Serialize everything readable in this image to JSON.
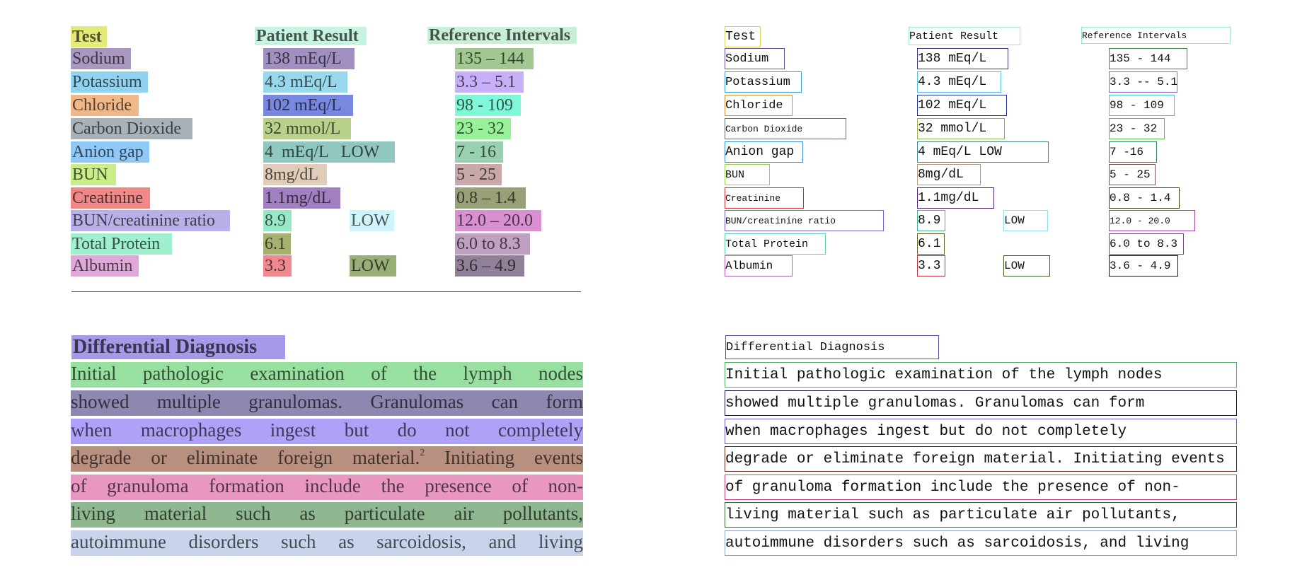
{
  "table": {
    "headers": [
      {
        "text": "Test",
        "ocr": "Test",
        "highlight": "#e4ea78",
        "box": "#d6d65a"
      },
      {
        "text": "Patient Result",
        "ocr": "Patient Result",
        "highlight": "#c6f4e0",
        "box": "#9ee6d6"
      },
      {
        "text": "Reference Intervals",
        "ocr": "Reference Intervals",
        "highlight": "#c8f0d6",
        "box": "#9ee6c6"
      }
    ],
    "rows": [
      {
        "test": {
          "text": "Sodium",
          "ocr": "Sodium",
          "highlight": "#a898c0",
          "box": "#6a4a9a"
        },
        "result": {
          "text": "138 mEq/L",
          "ocr": "138 mEq/L",
          "highlight": "#a090c0",
          "box": "#403070"
        },
        "reference": {
          "text": "135 – 144",
          "ocr": "135 - 144",
          "highlight": "#a0c890",
          "box": "#408040"
        }
      },
      {
        "test": {
          "text": "Potassium",
          "ocr": "Potassium",
          "highlight": "#8fd3f0",
          "box": "#3aa0d0"
        },
        "result": {
          "text": "4.3 mEq/L",
          "ocr": "4.3 mEq/L",
          "highlight": "#98d8ec",
          "box": "#50c0e0"
        },
        "reference": {
          "text": "3.3 – 5.1",
          "ocr": "3.3 -- 5.1",
          "highlight": "#c8b0f8",
          "box": "#9060d0"
        }
      },
      {
        "test": {
          "text": "Chloride",
          "ocr": "Chloride",
          "highlight": "#f0b888",
          "box": "#d09040"
        },
        "result": {
          "text": "102 mEq/L",
          "ocr": "102 mEq/L",
          "highlight": "#7888e0",
          "box": "#203090"
        },
        "reference": {
          "text": "98 - 109",
          "ocr": "98 - 109",
          "highlight": "#80f8d8",
          "box": "#40d0c0"
        }
      },
      {
        "test": {
          "text": "Carbon Dioxide",
          "ocr": "Carbon Dioxide",
          "highlight": "#a8b0b8",
          "box": "#606870"
        },
        "result": {
          "text": "32 mmol/L",
          "ocr": "32 mmol/L",
          "highlight": "#b8d088",
          "box": "#90b040"
        },
        "reference": {
          "text": "23 - 32",
          "ocr": "23 - 32",
          "highlight": "#98f098",
          "box": "#50c050"
        }
      },
      {
        "test": {
          "text": "Anion gap",
          "ocr": "Anion gap",
          "highlight": "#90c8f8",
          "box": "#3890d0"
        },
        "result": {
          "text": "4  mEq/L   LOW",
          "ocr": "4 mEq/L LOW",
          "highlight": "#90c8c0",
          "box": "#408888"
        },
        "reference": {
          "text": "7 - 16",
          "ocr": "7 -16",
          "highlight": "#98d0b0",
          "box": "#308060"
        }
      },
      {
        "test": {
          "text": "BUN",
          "ocr": "BUN",
          "highlight": "#c8ee88",
          "box": "#98d050"
        },
        "result": {
          "text": "8mg/dL",
          "ocr": "8mg/dL",
          "highlight": "#e0ccb8",
          "box": "#b09880"
        },
        "reference": {
          "text": "5 - 25",
          "ocr": "5 - 25",
          "highlight": "#c8a8a8",
          "box": "#805050"
        }
      },
      {
        "test": {
          "text": "Creatinine",
          "ocr": "Creatinine",
          "highlight": "#f08888",
          "box": "#c03030"
        },
        "result": {
          "text": "1.1mg/dL",
          "ocr": "1.1mg/dL",
          "highlight": "#a080c0",
          "box": "#502070"
        },
        "reference": {
          "text": "0.8 – 1.4",
          "ocr": "0.8 - 1.4",
          "highlight": "#98a078",
          "box": "#404010"
        }
      },
      {
        "test": {
          "text": "BUN/creatinine ratio",
          "ocr": "BUN/creatinine ratio",
          "highlight": "#b8b0e8",
          "box": "#7060c0"
        },
        "result": {
          "text": "8.9",
          "ocr": "8.9",
          "highlight": "#98e8c8",
          "box": "#40b098"
        },
        "flag": {
          "text": "LOW",
          "ocr": "LOW",
          "highlight": "#d0f4fc",
          "box": "#90e0f0"
        },
        "reference": {
          "text": "12.0 – 20.0",
          "ocr": "12.0 - 20.0",
          "highlight": "#d890d0",
          "box": "#a040a0"
        }
      },
      {
        "test": {
          "text": "Total Protein",
          "ocr": "Total Protein",
          "highlight": "#a0f0d0",
          "box": "#60d0b0"
        },
        "result": {
          "text": "6.1",
          "ocr": "6.1",
          "highlight": "#a8b070",
          "box": "#606020"
        },
        "reference": {
          "text": "6.0 to 8.3",
          "ocr": "6.0 to 8.3",
          "highlight": "#c0a0c0",
          "box": "#705070"
        }
      },
      {
        "test": {
          "text": "Albumin",
          "ocr": "Albumin",
          "highlight": "#e0a8d8",
          "box": "#b060b0"
        },
        "result": {
          "text": "3.3",
          "ocr": "3.3",
          "highlight": "#f08890",
          "box": "#c03040"
        },
        "flag": {
          "text": "LOW",
          "ocr": "LOW",
          "highlight": "#98b078",
          "box": "#406020"
        },
        "reference": {
          "text": "3.6 – 4.9",
          "ocr": "3.6 - 4.9",
          "highlight": "#908098",
          "box": "#101020"
        }
      }
    ]
  },
  "section": {
    "title": {
      "text": "Differential Diagnosis",
      "ocr": "Differential Diagnosis",
      "highlight": "#a898e8",
      "box": "#6050a0"
    },
    "lines": [
      {
        "text": "Initial pathologic examination of the lymph nodes",
        "ocr": "Initial pathologic examination of the lymph nodes",
        "highlight": "#98e0a0",
        "box": "#50b060"
      },
      {
        "text": "showed multiple granulomas. Granulomas can form",
        "ocr": "showed multiple granulomas. Granulomas can form",
        "highlight": "#8c88b0",
        "box": "#101040"
      },
      {
        "text": "when macrophages ingest but do not completely",
        "ocr": "when macrophages ingest but do not completely",
        "highlight": "#b0a0f8",
        "box": "#7060c0"
      },
      {
        "text": "degrade or eliminate foreign material.",
        "sup": "2",
        "text_after": " Initiating events",
        "ocr": "degrade or eliminate foreign material. Initiating events",
        "highlight": "#b89080",
        "box": "#502010"
      },
      {
        "text": "of granuloma formation include the presence of non-",
        "ocr": "of granuloma formation include the presence of non-",
        "highlight": "#e898c0",
        "box": "#c04080"
      },
      {
        "text": "living material such as particulate air pollutants,",
        "ocr": "living material such as particulate air pollutants,",
        "highlight": "#90b890",
        "box": "#306030"
      },
      {
        "text": "autoimmune disorders such as sarcoidosis, and living",
        "ocr": "autoimmune disorders such as sarcoidosis, and living",
        "highlight": "#c8d4ec",
        "box": "#90a8c8"
      }
    ]
  }
}
